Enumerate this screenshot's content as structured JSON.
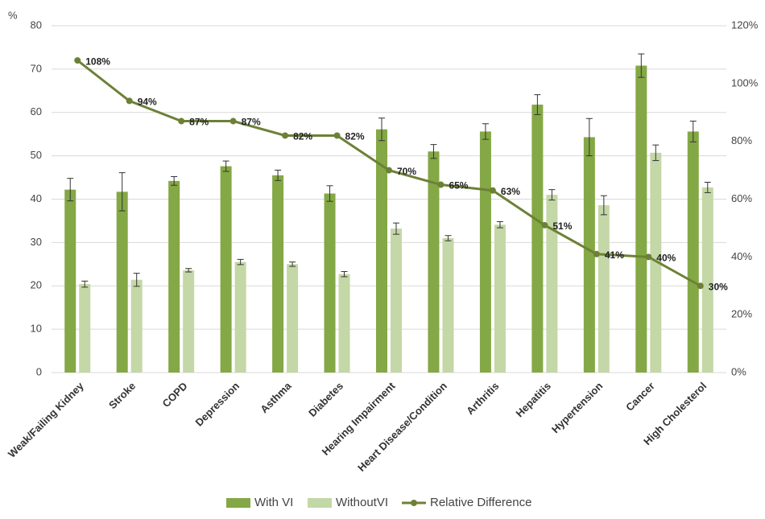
{
  "chart_data": {
    "type": "bar_line",
    "y_label": "%",
    "categories": [
      "Weak/Failing Kidney",
      "Stroke",
      "COPD",
      "Depression",
      "Asthma",
      "Diabetes",
      "Hearing Impairment",
      "Heart Disease/Condition",
      "Arthritis",
      "Hepatitis",
      "Hypertension",
      "Cancer",
      "High Cholesterol"
    ],
    "series": [
      {
        "name": "With VI",
        "type": "bar",
        "color": "#84a845",
        "values": [
          42.2,
          41.7,
          44.2,
          47.6,
          45.5,
          41.3,
          56.1,
          51.0,
          55.6,
          61.8,
          54.3,
          70.8,
          55.6
        ],
        "errors": [
          2.6,
          4.4,
          1.0,
          1.2,
          1.2,
          1.8,
          2.6,
          1.6,
          1.8,
          2.3,
          4.3,
          2.7,
          2.4
        ]
      },
      {
        "name": "WithoutVI",
        "type": "bar",
        "color": "#c4d7a6",
        "values": [
          20.4,
          21.4,
          23.6,
          25.5,
          25.0,
          22.7,
          33.2,
          31.0,
          34.1,
          41.0,
          38.6,
          50.7,
          42.7
        ],
        "errors": [
          0.7,
          1.5,
          0.4,
          0.6,
          0.5,
          0.6,
          1.3,
          0.6,
          0.7,
          1.2,
          2.2,
          1.8,
          1.2
        ]
      },
      {
        "name": "Relative Difference",
        "type": "line",
        "axis": "y2",
        "color": "#6d8136",
        "values": [
          108,
          94,
          87,
          87,
          82,
          82,
          70,
          65,
          63,
          51,
          41,
          40,
          30
        ],
        "value_labels": [
          "108%",
          "94%",
          "87%",
          "87%",
          "82%",
          "82%",
          "70%",
          "65%",
          "63%",
          "51%",
          "41%",
          "40%",
          "30%"
        ]
      }
    ],
    "ylim": [
      0,
      80
    ],
    "yticks": [
      0,
      10,
      20,
      30,
      40,
      50,
      60,
      70,
      80
    ],
    "y2lim": [
      0,
      120
    ],
    "y2ticks": [
      {
        "value": 0,
        "label": "0%"
      },
      {
        "value": 20,
        "label": "20%"
      },
      {
        "value": 40,
        "label": "40%"
      },
      {
        "value": 60,
        "label": "60%"
      },
      {
        "value": 80,
        "label": "80%"
      },
      {
        "value": 100,
        "label": "100%"
      },
      {
        "value": 120,
        "label": "120%"
      }
    ],
    "grid": true,
    "legend": "bottom"
  }
}
